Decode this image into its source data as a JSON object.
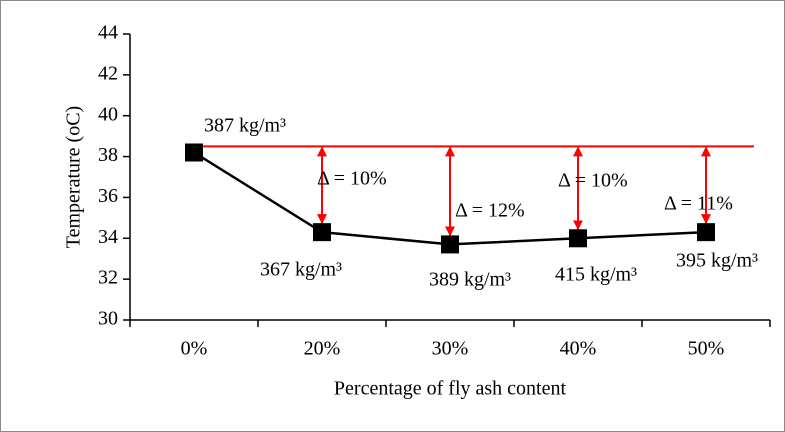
{
  "chart_data": {
    "type": "line",
    "x_label": "Percentage of fly ash content",
    "y_label": "Temperature (oC)",
    "categories": [
      "0%",
      "20%",
      "30%",
      "40%",
      "50%"
    ],
    "series": [
      {
        "color": "#000000",
        "values": [
          38.2,
          34.3,
          33.7,
          34.0,
          34.3
        ]
      }
    ],
    "ylim": [
      30,
      44
    ],
    "yticks": [
      30,
      32,
      34,
      36,
      38,
      40,
      42,
      44
    ],
    "reference_line": {
      "value": 38.5,
      "color": "#ff0000"
    },
    "density_labels": [
      "387 kg/m³",
      "367 kg/m³",
      "389 kg/m³",
      "415 kg/m³",
      "395 kg/m³"
    ],
    "delta_labels": [
      "Δ = 10%",
      "Δ = 12%",
      "Δ = 10%",
      "Δ = 11%"
    ]
  }
}
